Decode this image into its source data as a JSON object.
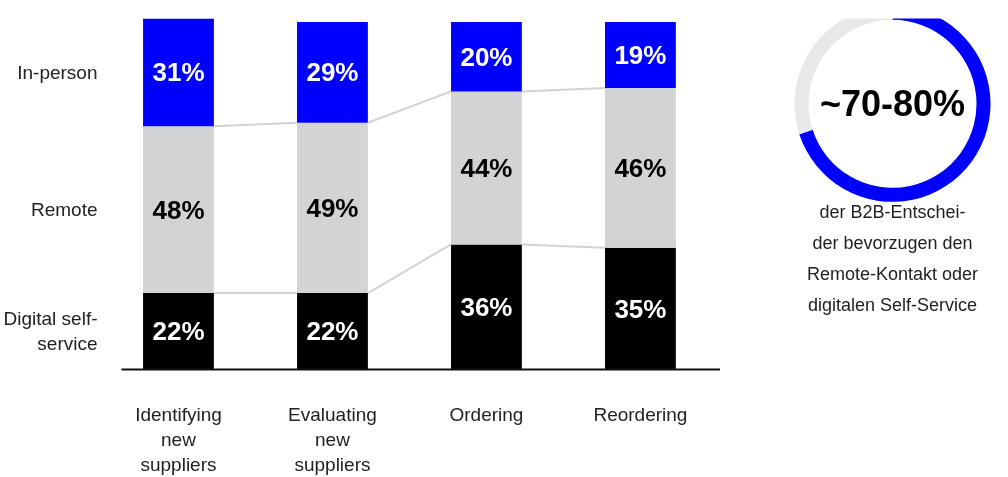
{
  "chart_data": [
    {
      "type": "bar",
      "stacked": true,
      "grid": false,
      "categories": [
        "Identifying new suppliers",
        "Evaluating new suppliers",
        "Ordering",
        "Reordering"
      ],
      "series": [
        {
          "name": "Digital self-service",
          "color": "#000000",
          "values": [
            22,
            22,
            36,
            35
          ],
          "value_labels": [
            "22%",
            "22%",
            "36%",
            "35%"
          ]
        },
        {
          "name": "Remote",
          "color": "#d1d3d4",
          "values": [
            48,
            49,
            44,
            46
          ],
          "value_labels": [
            "48%",
            "49%",
            "44%",
            "46%"
          ]
        },
        {
          "name": "In-person",
          "color": "#0000ff",
          "values": [
            31,
            29,
            20,
            19
          ],
          "value_labels": [
            "31%",
            "29%",
            "20%",
            "19%"
          ]
        }
      ]
    },
    {
      "type": "donut",
      "categories": [
        null,
        null
      ],
      "values": [
        70,
        30
      ],
      "colors": [
        "#0000ff",
        "#e8e8e8"
      ],
      "annotations": [
        "~70-80%",
        "der B2B-Entschei-\nder bevorzugen den\nRemote-Kontakt oder\ndigitalen Self-Service"
      ]
    }
  ]
}
